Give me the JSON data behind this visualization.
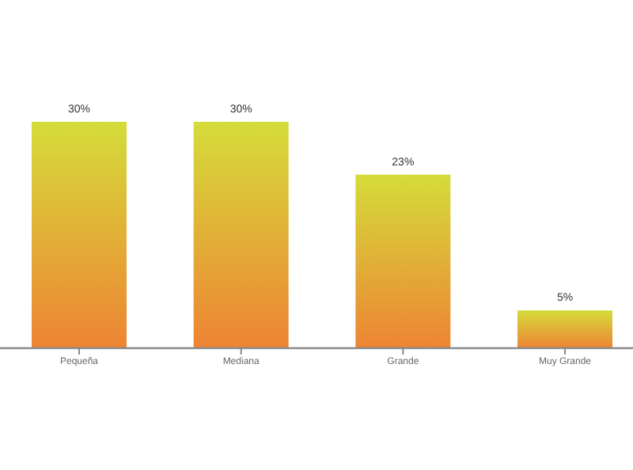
{
  "chart_data": {
    "type": "bar",
    "categories": [
      "Pequeña",
      "Mediana",
      "Grande",
      "Muy Grande"
    ],
    "values": [
      30,
      30,
      23,
      5
    ],
    "value_labels": [
      "30%",
      "30%",
      "23%",
      "5%"
    ],
    "color": "#d4dc3a"
  }
}
